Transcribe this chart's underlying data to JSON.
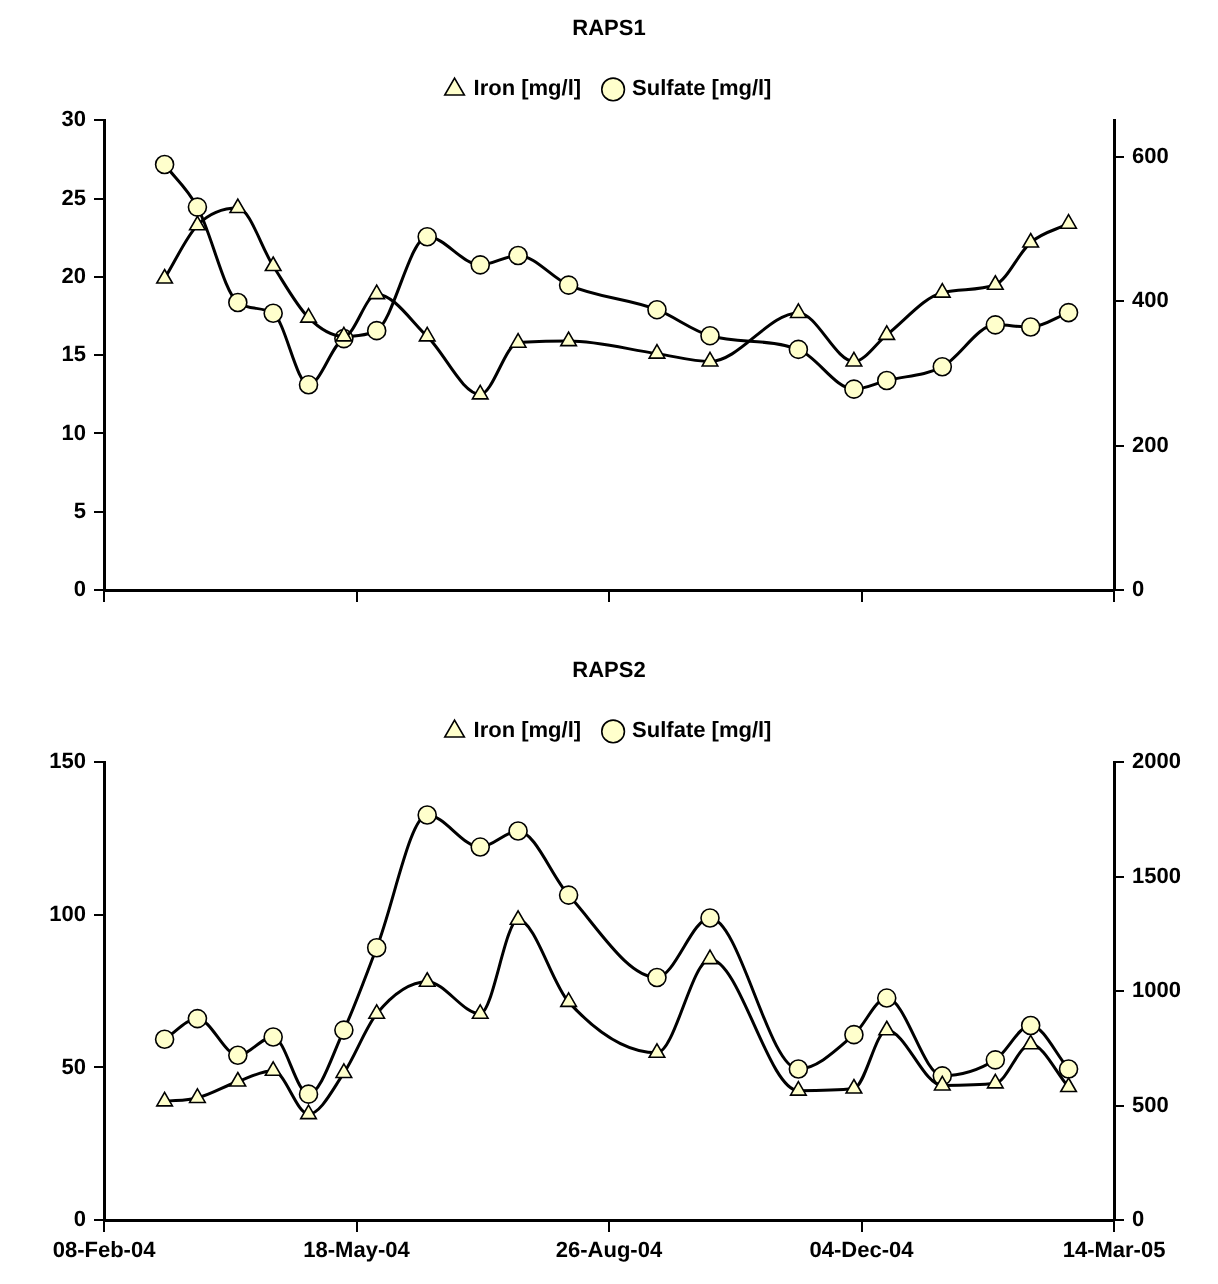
{
  "chart_data": [
    {
      "type": "line",
      "title": "RAPS1",
      "legend": "top",
      "tick_labels": "y",
      "x": [
        "2004-03-03",
        "2004-03-16",
        "2004-04-01",
        "2004-04-15",
        "2004-04-29",
        "2004-05-13",
        "2004-05-26",
        "2004-06-15",
        "2004-07-06",
        "2004-07-21",
        "2004-08-10",
        "2004-09-14",
        "2004-10-05",
        "2004-11-09",
        "2004-12-01",
        "2004-12-14",
        "2005-01-05",
        "2005-01-26",
        "2005-02-09",
        "2005-02-24"
      ],
      "xlim": [
        "2004-02-08",
        "2005-03-14"
      ],
      "xticks": [
        {
          "value": "2004-02-08",
          "label": null
        },
        {
          "value": "2004-05-18",
          "label": null
        },
        {
          "value": "2004-08-26",
          "label": null
        },
        {
          "value": "2004-12-04",
          "label": null
        },
        {
          "value": "2005-03-14",
          "label": null
        }
      ],
      "ylim": [
        0,
        30
      ],
      "yticks": [
        0,
        5,
        10,
        15,
        20,
        25,
        30
      ],
      "y2lim": [
        0,
        650
      ],
      "y2ticks": [
        0,
        200,
        400,
        600
      ],
      "series": [
        {
          "name": "Iron [mg/l]",
          "color": "#ffffcc",
          "marker": "triangle",
          "values": [
            19.9,
            23.3,
            24.4,
            20.7,
            17.4,
            16.2,
            18.9,
            16.2,
            12.5,
            15.8,
            15.9,
            15.1,
            14.6,
            17.7,
            14.6,
            16.3,
            19.0,
            19.5,
            22.2,
            23.4
          ]
        },
        {
          "name": "Sulfate [mg/l]",
          "color": "#ffffcc",
          "marker": "circle",
          "axis": "y2",
          "values": [
            589,
            530,
            398,
            383,
            284,
            348,
            359,
            489,
            450,
            463,
            422,
            388,
            352,
            333,
            278,
            290,
            309,
            367,
            364,
            384
          ]
        }
      ]
    },
    {
      "type": "line",
      "title": "RAPS2",
      "legend": "top",
      "x": [
        "2004-03-03",
        "2004-03-16",
        "2004-04-01",
        "2004-04-15",
        "2004-04-29",
        "2004-05-13",
        "2004-05-26",
        "2004-06-15",
        "2004-07-06",
        "2004-07-21",
        "2004-08-10",
        "2004-09-14",
        "2004-10-05",
        "2004-11-09",
        "2004-12-01",
        "2004-12-14",
        "2005-01-05",
        "2005-01-26",
        "2005-02-09",
        "2005-02-24"
      ],
      "xlim": [
        "2004-02-08",
        "2005-03-14"
      ],
      "xticks": [
        {
          "value": "2004-02-08",
          "label": "08-Feb-04"
        },
        {
          "value": "2004-05-18",
          "label": "18-May-04"
        },
        {
          "value": "2004-08-26",
          "label": "26-Aug-04"
        },
        {
          "value": "2004-12-04",
          "label": "04-Dec-04"
        },
        {
          "value": "2005-03-14",
          "label": "14-Mar-05"
        }
      ],
      "ylim": [
        0,
        150
      ],
      "yticks": [
        0,
        50,
        100,
        150
      ],
      "y2lim": [
        0,
        2000
      ],
      "y2ticks": [
        0,
        500,
        1000,
        1500,
        2000
      ],
      "series": [
        {
          "name": "Iron [mg/l]",
          "color": "#ffffcc",
          "marker": "triangle",
          "values": [
            38.9,
            40.0,
            45.4,
            48.9,
            34.7,
            48.2,
            67.6,
            78.1,
            67.6,
            98.4,
            71.5,
            54.8,
            85.5,
            42.4,
            43.1,
            62.2,
            44.1,
            44.8,
            57.6,
            43.6
          ]
        },
        {
          "name": "Sulfate [mg/l]",
          "color": "#ffffcc",
          "marker": "circle",
          "axis": "y2",
          "values": [
            790,
            880,
            720,
            800,
            550,
            830,
            1190,
            1770,
            1630,
            1700,
            1420,
            1060,
            1320,
            660,
            810,
            970,
            630,
            700,
            850,
            660
          ]
        }
      ]
    }
  ]
}
